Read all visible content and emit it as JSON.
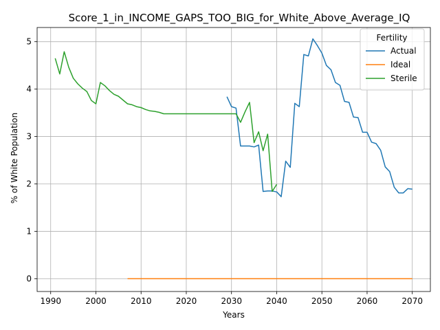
{
  "chart_data": {
    "type": "line",
    "title": "Score_1_in_INCOME_GAPS_TOO_BIG_for_White_Above_Average_IQ",
    "xlabel": "Years",
    "ylabel": "% of White Population",
    "xlim": [
      1987,
      2074
    ],
    "ylim": [
      -0.27,
      5.3
    ],
    "xticks": [
      1990,
      2000,
      2010,
      2020,
      2030,
      2040,
      2050,
      2060,
      2070
    ],
    "yticks": [
      0,
      1,
      2,
      3,
      4,
      5
    ],
    "grid": true,
    "legend": {
      "title": "Fertility",
      "placement": "top-right"
    },
    "series": [
      {
        "name": "Actual",
        "color": "#1f77b4",
        "x": [
          2029,
          2030,
          2031,
          2032,
          2033,
          2034,
          2035,
          2036,
          2037,
          2038,
          2039,
          2040,
          2041,
          2042,
          2043,
          2044,
          2045,
          2046,
          2047,
          2048,
          2049,
          2050,
          2051,
          2052,
          2053,
          2054,
          2055,
          2056,
          2057,
          2058,
          2059,
          2060,
          2061,
          2062,
          2063,
          2064,
          2065,
          2066,
          2067,
          2068,
          2069,
          2070
        ],
        "y": [
          3.84,
          3.63,
          3.6,
          2.8,
          2.8,
          2.8,
          2.78,
          2.82,
          1.84,
          1.85,
          1.85,
          1.83,
          1.73,
          2.48,
          2.35,
          3.7,
          3.63,
          4.73,
          4.7,
          5.06,
          4.92,
          4.76,
          4.5,
          4.41,
          4.14,
          4.08,
          3.74,
          3.72,
          3.41,
          3.4,
          3.09,
          3.09,
          2.88,
          2.85,
          2.71,
          2.36,
          2.26,
          1.93,
          1.81,
          1.81,
          1.9,
          1.89
        ]
      },
      {
        "name": "Ideal",
        "color": "#ff7f0e",
        "x": [
          2007,
          2070
        ],
        "y": [
          0.0,
          0.0
        ]
      },
      {
        "name": "Sterile",
        "color": "#2ca02c",
        "x": [
          1991,
          1992,
          1993,
          1994,
          1995,
          1996,
          1997,
          1998,
          1999,
          2000,
          2001,
          2002,
          2003,
          2004,
          2005,
          2006,
          2007,
          2008,
          2009,
          2010,
          2011,
          2012,
          2013,
          2014,
          2015,
          2016,
          2017,
          2018,
          2019,
          2020,
          2021,
          2022,
          2023,
          2024,
          2025,
          2026,
          2027,
          2028,
          2029,
          2030,
          2031,
          2032,
          2033,
          2034,
          2035,
          2036,
          2037,
          2038,
          2039,
          2040
        ],
        "y": [
          4.65,
          4.32,
          4.79,
          4.46,
          4.23,
          4.11,
          4.02,
          3.95,
          3.76,
          3.69,
          4.14,
          4.07,
          3.97,
          3.89,
          3.85,
          3.77,
          3.69,
          3.67,
          3.63,
          3.61,
          3.57,
          3.54,
          3.53,
          3.51,
          3.48,
          3.48,
          3.48,
          3.48,
          3.48,
          3.48,
          3.48,
          3.48,
          3.48,
          3.48,
          3.48,
          3.48,
          3.48,
          3.48,
          3.48,
          3.48,
          3.48,
          3.3,
          3.52,
          3.72,
          2.87,
          3.1,
          2.7,
          3.05,
          1.84,
          1.99
        ]
      }
    ]
  }
}
